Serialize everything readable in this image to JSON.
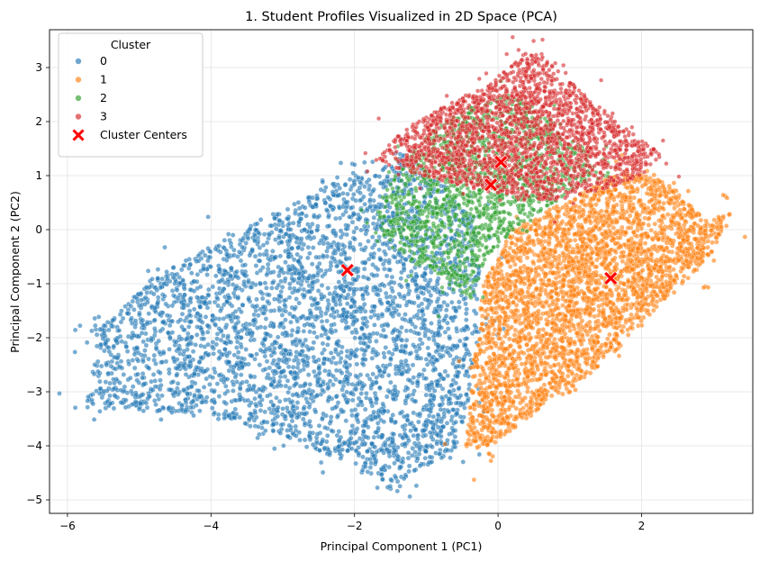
{
  "chart_data": {
    "type": "scatter",
    "title": "1. Student Profiles Visualized in 2D Space (PCA)",
    "xlabel": "Principal Component 1 (PC1)",
    "ylabel": "Principal Component 2 (PC2)",
    "xlim": [
      -6.25,
      3.55
    ],
    "ylim": [
      -5.25,
      3.7
    ],
    "xticks": [
      -6,
      -4,
      -2,
      0,
      2
    ],
    "yticks": [
      -5,
      -4,
      -3,
      -2,
      -1,
      0,
      1,
      2,
      3
    ],
    "grid": true,
    "legend": {
      "title": "Cluster",
      "placement": "top-left",
      "entries": [
        "0",
        "1",
        "2",
        "3",
        "Cluster Centers"
      ]
    },
    "colors": {
      "0": "#1f77b4",
      "1": "#ff7f0e",
      "2": "#2ca02c",
      "3": "#d62728",
      "centers": "#ff0000"
    },
    "series": [
      {
        "name": "0",
        "color": "#1f77b4"
      },
      {
        "name": "1",
        "color": "#ff7f0e"
      },
      {
        "name": "2",
        "color": "#2ca02c"
      },
      {
        "name": "3",
        "color": "#d62728"
      }
    ],
    "centers": [
      {
        "cluster": "0",
        "x": -2.1,
        "y": -0.75
      },
      {
        "cluster": "1",
        "x": 1.57,
        "y": -0.9
      },
      {
        "cluster": "2",
        "x": -0.1,
        "y": 0.83
      },
      {
        "cluster": "3",
        "x": 0.04,
        "y": 1.25
      }
    ]
  }
}
